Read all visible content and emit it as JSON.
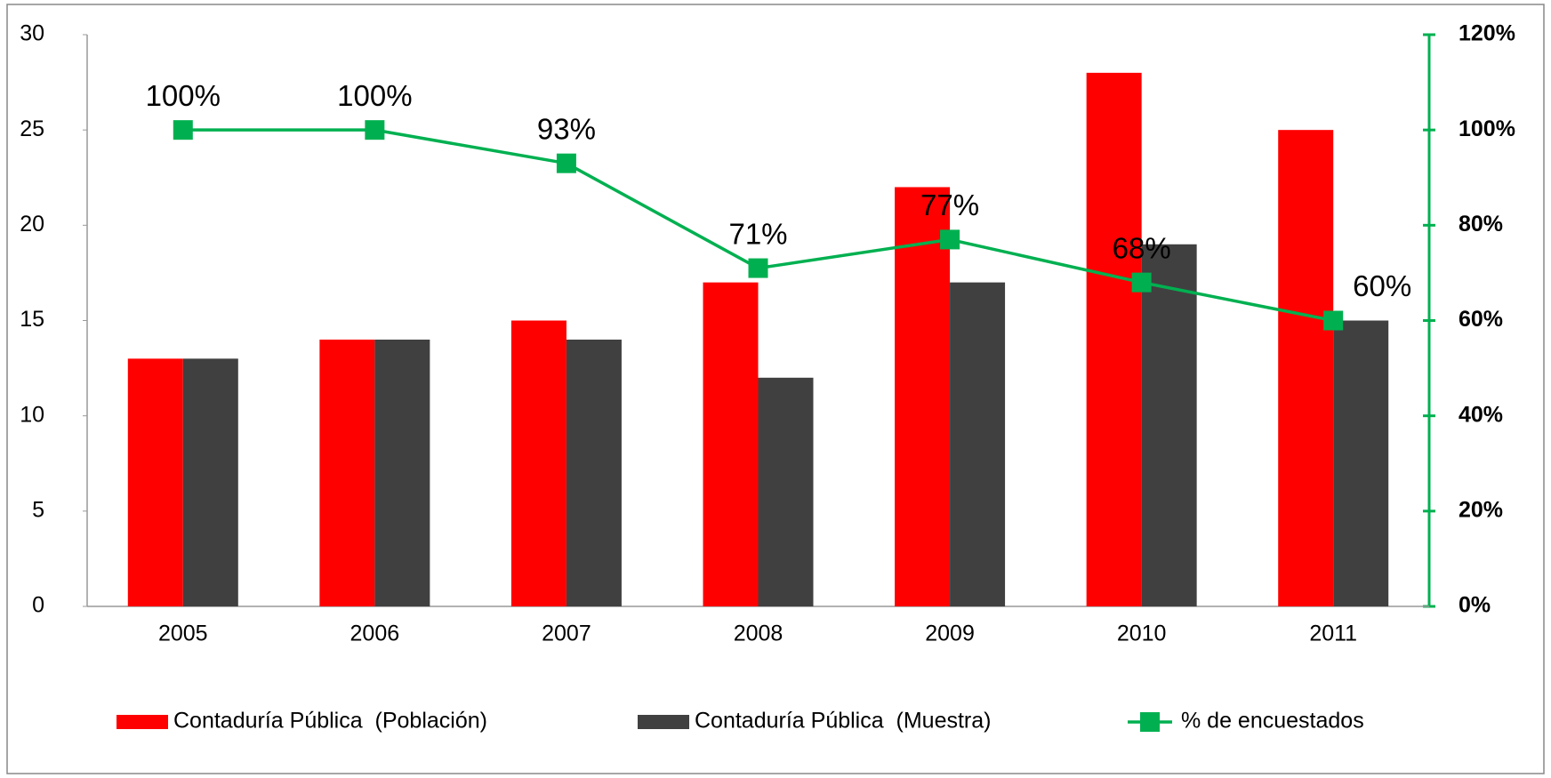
{
  "chart_data": {
    "type": "bar",
    "categories": [
      "2005",
      "2006",
      "2007",
      "2008",
      "2009",
      "2010",
      "2011"
    ],
    "series": [
      {
        "name": "Contaduría Pública  (Población)",
        "color": "#ff0000",
        "values": [
          13,
          14,
          15,
          17,
          22,
          28,
          25
        ]
      },
      {
        "name": "Contaduría Pública  (Muestra)",
        "color": "#404040",
        "values": [
          13,
          14,
          14,
          12,
          17,
          19,
          15
        ]
      },
      {
        "name": "% de encuestados",
        "color": "#00b050",
        "type": "line",
        "axis": "y2",
        "values": [
          100,
          100,
          93,
          71,
          77,
          68,
          60
        ],
        "value_labels": [
          "100%",
          "100%",
          "93%",
          "71%",
          "77%",
          "68%",
          "60%"
        ]
      }
    ],
    "ylim": [
      0,
      30
    ],
    "yticks": [
      0,
      5,
      10,
      15,
      20,
      25,
      30
    ],
    "y2lim": [
      0,
      120
    ],
    "y2ticks": [
      {
        "value": 0,
        "label": "0%"
      },
      {
        "value": 20,
        "label": "20%"
      },
      {
        "value": 40,
        "label": "40%"
      },
      {
        "value": 60,
        "label": "60%"
      },
      {
        "value": 80,
        "label": "80%"
      },
      {
        "value": 100,
        "label": "100%"
      },
      {
        "value": 120,
        "label": "120%"
      }
    ],
    "legend": "bottom"
  }
}
